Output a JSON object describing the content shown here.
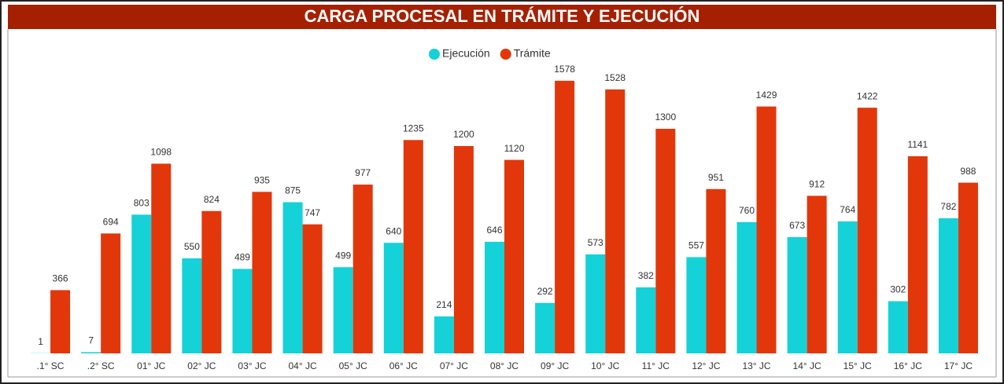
{
  "chart_data": {
    "type": "bar",
    "title": "CARGA PROCESAL EN TRÁMITE Y EJECUCIÓN",
    "categories": [
      ".1° SC",
      ".2° SC",
      "01° JC",
      "02° JC",
      "03° JC",
      "04° JC",
      "05° JC",
      "06° JC",
      "07° JC",
      "08° JC",
      "09° JC",
      "10° JC",
      "11° JC",
      "12° JC",
      "13° JC",
      "14° JC",
      "15° JC",
      "16° JC",
      "17° JC"
    ],
    "series": [
      {
        "name": "Ejecución",
        "color": "#14d2d8",
        "values": [
          1,
          7,
          803,
          550,
          489,
          875,
          499,
          640,
          214,
          646,
          292,
          573,
          382,
          557,
          760,
          673,
          764,
          302,
          782
        ]
      },
      {
        "name": "Trámite",
        "color": "#e2370b",
        "values": [
          366,
          694,
          1098,
          824,
          935,
          747,
          977,
          1235,
          1200,
          1120,
          1578,
          1528,
          1300,
          951,
          1429,
          912,
          1422,
          1141,
          988
        ]
      }
    ],
    "ylim": [
      0,
      1600
    ],
    "legend": "top"
  }
}
